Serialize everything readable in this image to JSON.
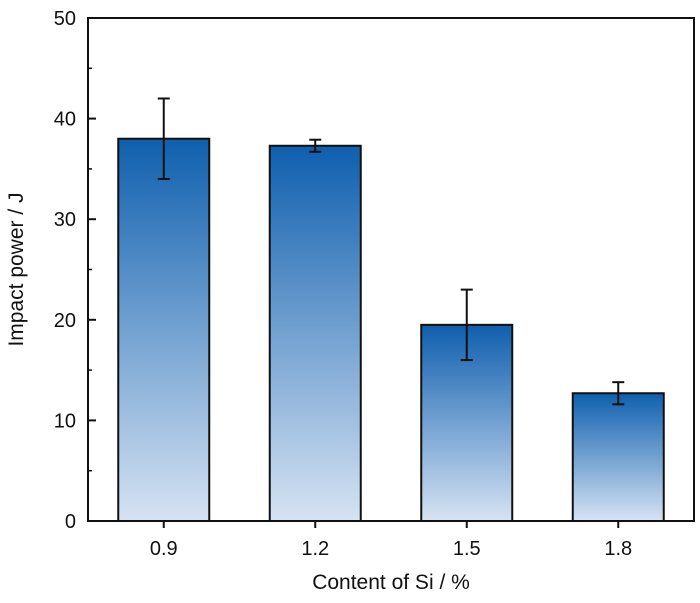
{
  "chart_data": {
    "type": "bar",
    "title": "",
    "xlabel": "Content of Si / %",
    "ylabel": "Impact power / J",
    "categories": [
      "0.9",
      "1.2",
      "1.5",
      "1.8"
    ],
    "values": [
      38.0,
      37.3,
      19.5,
      12.7
    ],
    "errors": [
      [
        34.0,
        42.0
      ],
      [
        36.7,
        37.9
      ],
      [
        16.0,
        23.0
      ],
      [
        11.6,
        13.8
      ]
    ],
    "ylim": [
      0,
      50
    ],
    "yticks": [
      "0",
      "10",
      "20",
      "30",
      "40",
      "50"
    ],
    "grid": false,
    "legend": "none",
    "colors": {
      "bar_top": "#0f5fae",
      "bar_bottom": "#d6e3f3",
      "edge": "#111111",
      "axis": "#111111"
    }
  }
}
